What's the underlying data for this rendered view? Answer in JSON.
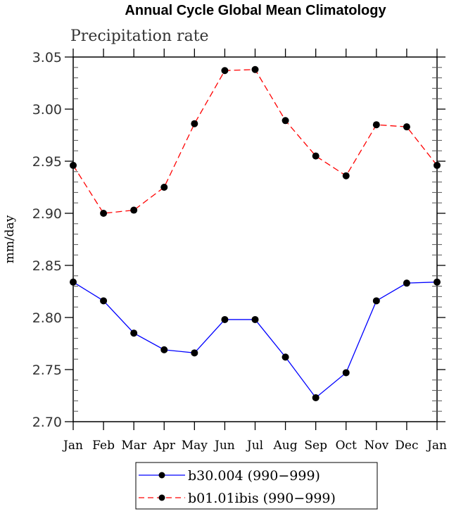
{
  "chart_data": {
    "type": "line",
    "title": "Annual Cycle Global Mean Climatology",
    "subtitle": "Precipitation rate",
    "xlabel": "",
    "ylabel": "mm/day",
    "ylim": [
      2.7,
      3.05
    ],
    "yticks": [
      "2.70",
      "2.75",
      "2.80",
      "2.85",
      "2.90",
      "2.95",
      "3.00",
      "3.05"
    ],
    "categories": [
      "Jan",
      "Feb",
      "Mar",
      "Apr",
      "May",
      "Jun",
      "Jul",
      "Aug",
      "Sep",
      "Oct",
      "Nov",
      "Dec",
      "Jan"
    ],
    "legend_position": "bottom-center",
    "series": [
      {
        "name": "b30.004 (990−999)",
        "color": "#0000ff",
        "dash": "solid",
        "values": [
          2.834,
          2.816,
          2.785,
          2.769,
          2.766,
          2.798,
          2.798,
          2.762,
          2.723,
          2.747,
          2.816,
          2.833,
          2.834
        ]
      },
      {
        "name": "b01.01ibis (990−999)",
        "color": "#ff0000",
        "dash": "dashed",
        "values": [
          2.946,
          2.9,
          2.903,
          2.925,
          2.986,
          3.037,
          3.038,
          2.989,
          2.955,
          2.936,
          2.985,
          2.983,
          2.946
        ]
      }
    ]
  }
}
